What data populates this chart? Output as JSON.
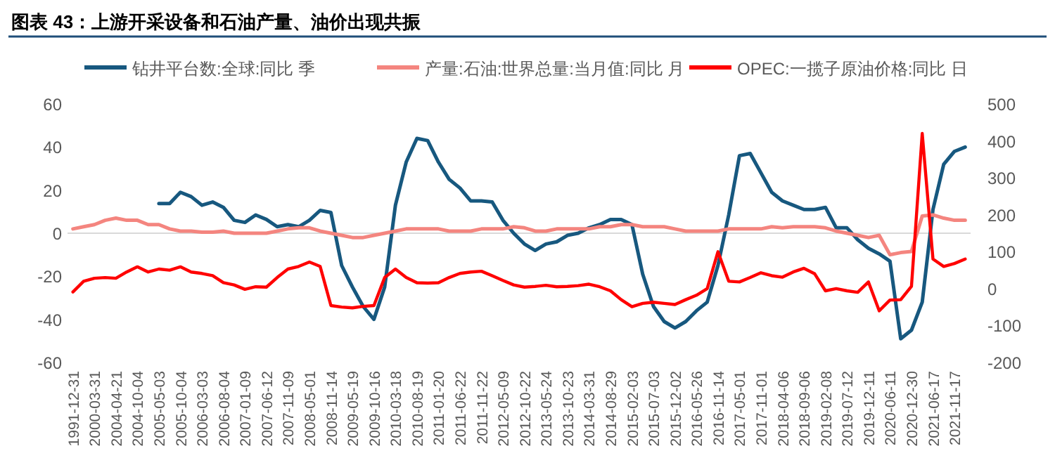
{
  "chart_data": {
    "type": "line",
    "title": "图表 43：上游开采设备和石油产量、油价出现共振",
    "categories": [
      "1991-12-31",
      null,
      "2000-03-31",
      null,
      "2004-04-21",
      null,
      "2004-10-04",
      null,
      "2005-05-03",
      null,
      "2005-10-04",
      null,
      "2006-03-03",
      null,
      "2006-08-04",
      null,
      "2007-01-09",
      null,
      "2007-06-12",
      null,
      "2007-11-09",
      null,
      "2008-05-01",
      null,
      "2008-11-14",
      null,
      "2009-05-19",
      null,
      "2009-10-16",
      null,
      "2010-03-18",
      null,
      "2010-08-19",
      null,
      "2011-01-20",
      null,
      "2011-06-22",
      null,
      "2011-11-22",
      null,
      "2012-05-09",
      null,
      "2012-10-22",
      null,
      "2013-05-24",
      null,
      "2013-10-23",
      null,
      "2014-03-31",
      null,
      "2014-08-29",
      null,
      "2015-02-03",
      null,
      "2015-07-03",
      null,
      "2015-12-02",
      null,
      "2016-05-26",
      null,
      "2016-11-14",
      null,
      "2017-05-01",
      null,
      "2017-11-01",
      null,
      "2018-04-06",
      null,
      "2018-09-06",
      null,
      "2019-02-08",
      null,
      "2019-07-12",
      null,
      "2019-12-11",
      null,
      "2020-06-11",
      null,
      "2020-12-30",
      null,
      "2021-06-17",
      null,
      "2021-11-17",
      null
    ],
    "series": [
      {
        "name": "钻井平台数:全球:同比  季",
        "color": "#17587f",
        "axis": "y",
        "values": [
          null,
          null,
          null,
          null,
          null,
          null,
          null,
          null,
          13.8,
          13.8,
          19,
          17,
          13,
          14.5,
          12,
          6,
          5,
          8.5,
          6.4,
          3,
          4,
          3,
          6,
          10.6,
          9.6,
          -15,
          -25,
          -34,
          -40,
          -25,
          13,
          33,
          44,
          43,
          33,
          25,
          21,
          15,
          15,
          14.5,
          6,
          0,
          -5,
          -8,
          -5,
          -4,
          -1,
          0,
          2.5,
          4,
          6.4,
          6.4,
          4,
          -19,
          -34,
          -41,
          -44,
          -41,
          -36,
          -32,
          -15,
          8.5,
          36,
          37,
          28,
          19,
          15,
          13,
          11,
          11,
          12,
          2.5,
          2.5,
          -3,
          -7,
          -9.6,
          -13,
          -49,
          -45,
          -32,
          11,
          32,
          38,
          40
        ]
      },
      {
        "name": "产量:石油:世界总量:当月值:同比  月",
        "color": "#f4857f",
        "axis": "y",
        "values": [
          2,
          3,
          4,
          6,
          7,
          6,
          6,
          4,
          4,
          2,
          1,
          1,
          0.5,
          0.5,
          1,
          0,
          0,
          0,
          0,
          1,
          2,
          2.5,
          2.5,
          1,
          0,
          -1,
          -2,
          -2,
          -1,
          0,
          1,
          2,
          2,
          2,
          2,
          1,
          1,
          1,
          2,
          2,
          2,
          3,
          2.5,
          1,
          1,
          2,
          2,
          2,
          2,
          3,
          3,
          4,
          4,
          3,
          3,
          3,
          2,
          1,
          1,
          1,
          1,
          2,
          2,
          2,
          2,
          3,
          2.5,
          3,
          3,
          3,
          2.5,
          1,
          0,
          -1,
          -2,
          -1,
          -10,
          -9,
          -8.5,
          8,
          8.5,
          7,
          6,
          6
        ]
      },
      {
        "name": "OPEC:一揽子原油价格:同比  日",
        "color": "#ff0000",
        "axis": "y2",
        "values": [
          -9,
          20,
          28,
          30,
          28,
          45,
          59,
          45,
          53,
          50,
          59,
          45,
          41,
          35,
          16,
          10,
          -2,
          5,
          4,
          30,
          53,
          60,
          72,
          60,
          -46,
          -50,
          -52,
          -48,
          -46,
          30,
          53,
          30,
          16,
          15,
          16,
          30,
          41,
          45,
          47,
          35,
          22,
          10,
          4,
          6,
          9,
          5,
          6,
          8,
          12,
          5,
          -6,
          -30,
          -49,
          -40,
          -37,
          -40,
          -43,
          -30,
          -18,
          0,
          100,
          20,
          18,
          30,
          43,
          35,
          31,
          45,
          55,
          40,
          -6,
          0,
          -6,
          -10,
          18,
          -60,
          -31,
          -30,
          6,
          420,
          80,
          60,
          68,
          80
        ]
      }
    ],
    "ylim": [
      -60,
      60
    ],
    "yticks": [
      -60,
      -40,
      -20,
      0,
      20,
      40,
      60
    ],
    "y2lim": [
      -200,
      500
    ],
    "y2ticks": [
      -200,
      -100,
      0,
      100,
      200,
      300,
      400,
      500
    ],
    "ref_lines": [
      {
        "axis": "y",
        "value": 0,
        "color": "#d9d9d9"
      }
    ],
    "legend": "top"
  }
}
